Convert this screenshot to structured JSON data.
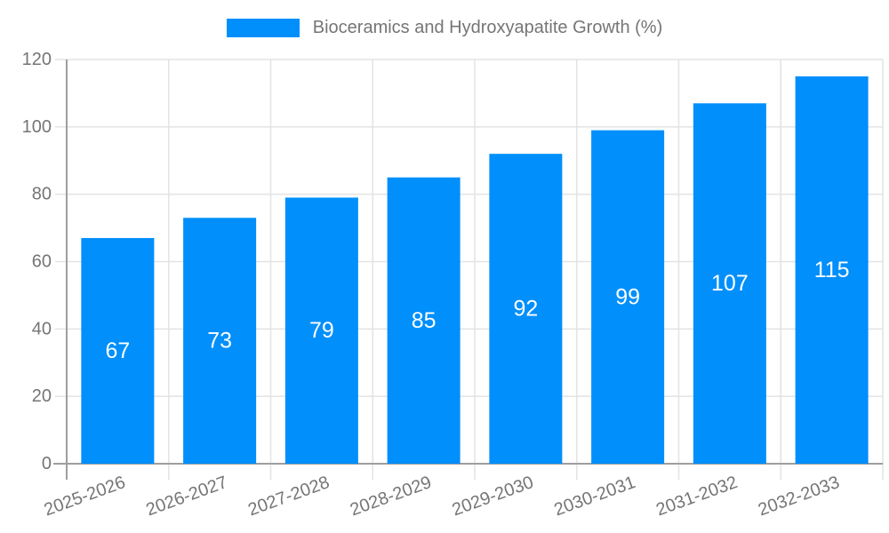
{
  "chart_data": {
    "type": "bar",
    "title": "Bioceramics and Hydroxyapatite Growth (%)",
    "legend": {
      "label": "Bioceramics and Hydroxyapatite Growth (%)",
      "position": "top"
    },
    "categories": [
      "2025-2026",
      "2026-2027",
      "2027-2028",
      "2028-2029",
      "2029-2030",
      "2030-2031",
      "2031-2032",
      "2032-2033"
    ],
    "series": [
      {
        "name": "Bioceramics and Hydroxyapatite Growth (%)",
        "values": [
          67,
          73,
          79,
          85,
          92,
          99,
          107,
          115
        ]
      }
    ],
    "data_labels": [
      "67",
      "73",
      "79",
      "85",
      "92",
      "99",
      "107",
      "115"
    ],
    "xlabel": "",
    "ylabel": "",
    "ylim": [
      0,
      120
    ],
    "yticks": [
      0,
      20,
      40,
      60,
      80,
      100,
      120
    ],
    "ytick_labels": [
      "0",
      "20",
      "40",
      "60",
      "80",
      "100",
      "120"
    ],
    "grid": "both",
    "legend_position": "top",
    "colors": {
      "bar": "#008FFB",
      "data_label": "#ffffff",
      "axis_label": "#757575",
      "grid_line": "#e3e3e3",
      "axis_line": "#9e9e9e",
      "background": "#ffffff"
    }
  }
}
